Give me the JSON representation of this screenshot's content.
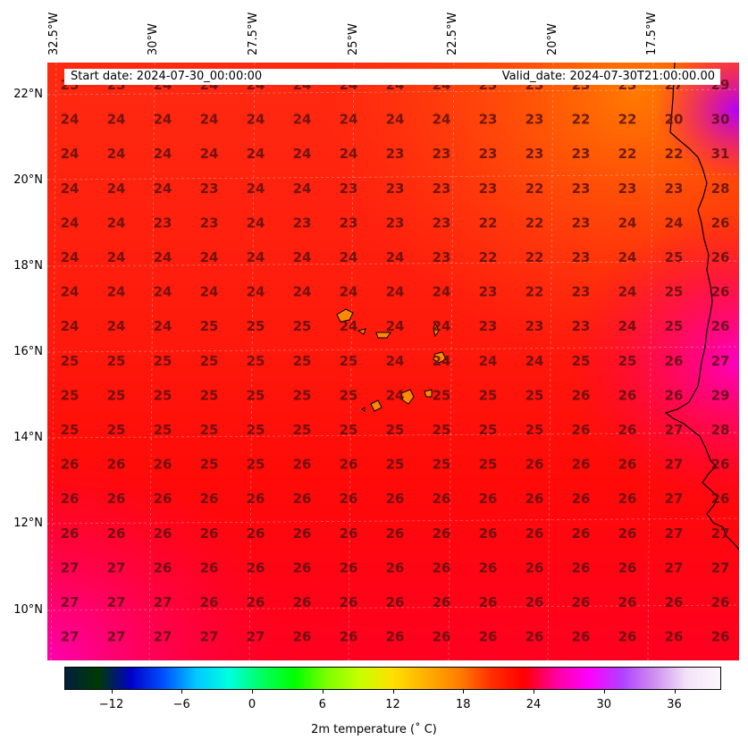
{
  "info": {
    "start": "Start date: 2024-07-30_00:00:00",
    "valid": "Valid_date: 2024-07-30T21:00:00.00"
  },
  "lon_labels": [
    "32.5°W",
    "30°W",
    "27.5°W",
    "25°W",
    "22.5°W",
    "20°W",
    "17.5°W"
  ],
  "lat_labels": [
    "22°N",
    "20°N",
    "18°N",
    "16°N",
    "14°N",
    "12°N",
    "10°N"
  ],
  "colorbar": {
    "title": "2m temperature ($^\\circ$C)",
    "title_display": "2m temperature (˚ C)",
    "ticks": [
      "−12",
      "−6",
      "0",
      "6",
      "12",
      "18",
      "24",
      "30",
      "36"
    ],
    "range": [
      -16,
      40
    ],
    "colors": [
      "#001f3f",
      "#003a00",
      "#0000c8",
      "#0050ff",
      "#00c8ff",
      "#00ffe0",
      "#00ff60",
      "#00ff00",
      "#7dff00",
      "#c8ff00",
      "#ffe000",
      "#ffb000",
      "#ff8000",
      "#ff3000",
      "#ff0000",
      "#ff00a0",
      "#ff00ff",
      "#b040ff",
      "#d090f0",
      "#f4e4f8",
      "#fcf6fb"
    ]
  },
  "grid_values": [
    [
      "25",
      "25",
      "24",
      "24",
      "24",
      "24",
      "24",
      "24",
      "24",
      "23",
      "23",
      "23",
      "23",
      "27",
      "29"
    ],
    [
      "24",
      "24",
      "24",
      "24",
      "24",
      "24",
      "24",
      "24",
      "24",
      "23",
      "23",
      "22",
      "22",
      "20",
      "30"
    ],
    [
      "24",
      "24",
      "24",
      "24",
      "24",
      "24",
      "24",
      "23",
      "23",
      "23",
      "23",
      "23",
      "22",
      "22",
      "31"
    ],
    [
      "24",
      "24",
      "24",
      "23",
      "24",
      "24",
      "23",
      "23",
      "23",
      "23",
      "22",
      "23",
      "23",
      "23",
      "28"
    ],
    [
      "24",
      "24",
      "23",
      "23",
      "24",
      "23",
      "23",
      "23",
      "23",
      "22",
      "22",
      "23",
      "24",
      "24",
      "26"
    ],
    [
      "24",
      "24",
      "24",
      "24",
      "24",
      "24",
      "24",
      "24",
      "23",
      "22",
      "22",
      "23",
      "24",
      "25",
      "26"
    ],
    [
      "24",
      "24",
      "24",
      "24",
      "24",
      "24",
      "24",
      "24",
      "24",
      "23",
      "22",
      "23",
      "24",
      "25",
      "26"
    ],
    [
      "24",
      "24",
      "24",
      "25",
      "25",
      "25",
      "24",
      "24",
      "24",
      "23",
      "23",
      "23",
      "24",
      "25",
      "26"
    ],
    [
      "25",
      "25",
      "25",
      "25",
      "25",
      "25",
      "25",
      "24",
      "24",
      "24",
      "24",
      "25",
      "25",
      "26",
      "27"
    ],
    [
      "25",
      "25",
      "25",
      "25",
      "25",
      "25",
      "25",
      "24",
      "25",
      "25",
      "25",
      "26",
      "26",
      "26",
      "29"
    ],
    [
      "25",
      "25",
      "25",
      "25",
      "25",
      "25",
      "25",
      "25",
      "25",
      "25",
      "25",
      "26",
      "26",
      "27",
      "28"
    ],
    [
      "26",
      "26",
      "26",
      "25",
      "25",
      "26",
      "26",
      "25",
      "25",
      "25",
      "26",
      "26",
      "26",
      "27",
      "26"
    ],
    [
      "26",
      "26",
      "26",
      "26",
      "26",
      "26",
      "26",
      "26",
      "26",
      "26",
      "26",
      "26",
      "26",
      "27",
      "26"
    ],
    [
      "26",
      "26",
      "26",
      "26",
      "26",
      "26",
      "26",
      "26",
      "26",
      "26",
      "26",
      "26",
      "26",
      "27",
      "27"
    ],
    [
      "27",
      "27",
      "26",
      "26",
      "26",
      "26",
      "26",
      "26",
      "26",
      "26",
      "26",
      "26",
      "26",
      "27",
      "27"
    ],
    [
      "27",
      "27",
      "27",
      "26",
      "26",
      "26",
      "26",
      "26",
      "26",
      "26",
      "26",
      "26",
      "26",
      "26",
      "26"
    ],
    [
      "27",
      "27",
      "27",
      "27",
      "27",
      "26",
      "26",
      "26",
      "26",
      "26",
      "26",
      "26",
      "26",
      "26",
      "26"
    ]
  ]
}
